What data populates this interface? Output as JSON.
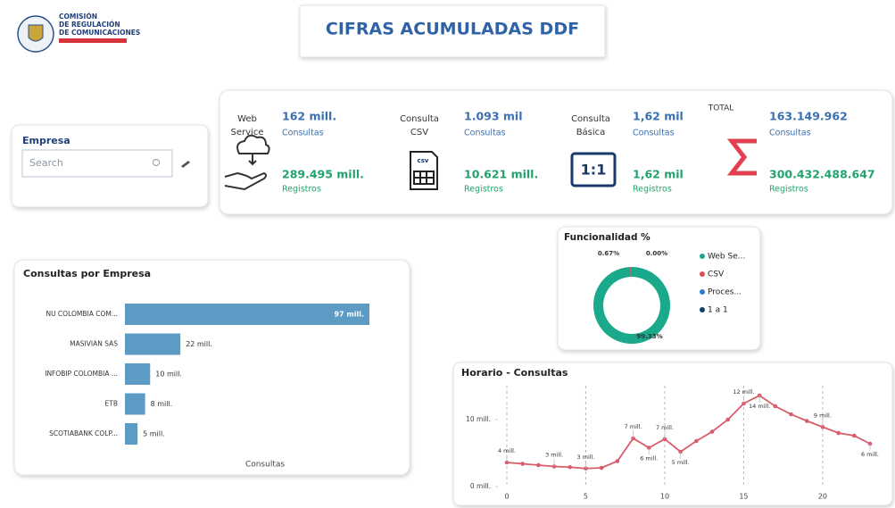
{
  "header": {
    "logo_lines": [
      "COMISIÓN",
      "DE REGULACIÓN",
      "DE COMUNICACIONES"
    ],
    "title": "CIFRAS ACUMULADAS DDF"
  },
  "filter": {
    "label": "Empresa",
    "placeholder": "Search"
  },
  "kpis": [
    {
      "label_lines": [
        "Web",
        "Service"
      ],
      "consultas": "162 mill.",
      "consultas_label": "Consultas",
      "registros": "289.495 mill.",
      "registros_label": "Registros"
    },
    {
      "label_lines": [
        "Consulta",
        "CSV"
      ],
      "icon_text": "csv",
      "consultas": "1.093 mil",
      "consultas_label": "Consultas",
      "registros": "10.621 mill.",
      "registros_label": "Registros"
    },
    {
      "label_lines": [
        "Consulta",
        "Básica"
      ],
      "icon_text": "1:1",
      "consultas": "1,62 mil",
      "consultas_label": "Consultas",
      "registros": "1,62 mil",
      "registros_label": "Registros"
    },
    {
      "label_lines": [
        "TOTAL"
      ],
      "consultas": "163.149.962",
      "consultas_label": "Consultas",
      "registros": "300.432.488.647",
      "registros_label": "Registros"
    }
  ],
  "bar_chart": {
    "type": "bar",
    "title": "Consultas por Empresa",
    "x_label": "Consultas",
    "categories": [
      "NU COLOMBIA COM...",
      "MASIVIAN SAS",
      "INFOBIP COLOMBIA ...",
      "ETB",
      "SCOTIABANK COLP..."
    ],
    "values": [
      97,
      22,
      10,
      8,
      5
    ],
    "value_labels": [
      "97 mill.",
      "22 mill.",
      "10 mill.",
      "8 mill.",
      "5 mill."
    ],
    "color": "#5b9bc4"
  },
  "donut_chart": {
    "type": "donut",
    "title": "Funcionalidad %",
    "categories": [
      "Web Se...",
      "CSV",
      "Proces...",
      "1 a 1"
    ],
    "values": [
      99.33,
      0.67,
      0.0,
      0.0
    ],
    "value_labels": [
      "99.33%",
      "0.67%",
      "0.00%",
      null
    ],
    "colors": [
      "#1aa98a",
      "#e04e5e",
      "#2b7bd6",
      "#123f6e"
    ]
  },
  "line_chart": {
    "type": "line",
    "title": "Horario - Consultas",
    "x": [
      0,
      1,
      2,
      3,
      4,
      5,
      6,
      7,
      8,
      9,
      10,
      11,
      12,
      13,
      14,
      15,
      16,
      17,
      18,
      19,
      20,
      21,
      22,
      23
    ],
    "values": [
      3.6,
      3.4,
      3.2,
      3.0,
      2.9,
      2.7,
      2.8,
      3.8,
      7.2,
      5.8,
      7.1,
      5.2,
      6.8,
      8.2,
      10.0,
      12.4,
      13.6,
      12.0,
      10.8,
      9.8,
      8.9,
      8.0,
      7.6,
      6.4
    ],
    "value_labels": [
      "4 mill.",
      null,
      null,
      "3 mill.",
      null,
      "3 mill.",
      null,
      null,
      "7 mill.",
      "6 mill.",
      "7 mill.",
      "5 mill.",
      null,
      null,
      null,
      "12 mill.",
      "14 mill.",
      null,
      null,
      null,
      "9 mill.",
      null,
      null,
      "6 mill."
    ],
    "color": "#d95c6b",
    "xlim": [
      0,
      23
    ],
    "xticks": [
      0,
      5,
      10,
      15,
      20
    ],
    "ylim": [
      0,
      16
    ],
    "yticks": [
      {
        "value": 0,
        "label": "0 mill."
      },
      {
        "value": 10,
        "label": "10 mill."
      }
    ],
    "grid": true
  }
}
